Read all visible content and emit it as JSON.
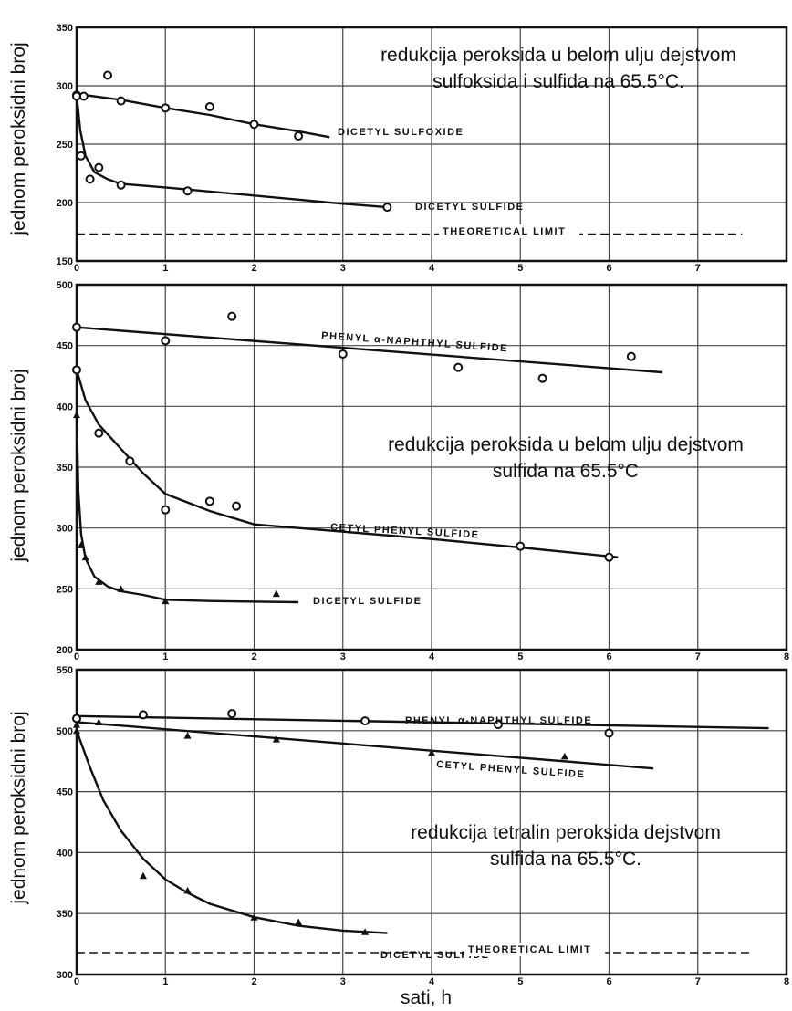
{
  "chart_data": [
    {
      "type": "scatter",
      "title": "redukcija peroksida u belom ulju dejstvom",
      "title_line2": "sulfoksida i sulfida na 65.5°C.",
      "ylabel": "jednom peroksidni broj",
      "xlim": [
        0,
        8
      ],
      "ylim": [
        150,
        350
      ],
      "x_ticks": [
        "0",
        "1",
        "2",
        "3",
        "4",
        "5",
        "6",
        "7"
      ],
      "y_ticks": [
        "150",
        "200",
        "250",
        "300",
        "350"
      ],
      "grid": true,
      "series": [
        {
          "name": "DICETYL SULFOXIDE",
          "marker": "circle",
          "points": [
            [
              0,
              292
            ],
            [
              0.08,
              291
            ],
            [
              0.35,
              309
            ],
            [
              0.5,
              287
            ],
            [
              1.0,
              281
            ],
            [
              1.5,
              282
            ],
            [
              2.0,
              267
            ],
            [
              2.5,
              257
            ]
          ],
          "fit": [
            [
              0,
              293
            ],
            [
              0.5,
              288
            ],
            [
              1.0,
              281
            ],
            [
              1.5,
              275
            ],
            [
              2.0,
              267
            ],
            [
              2.5,
              261
            ],
            [
              2.85,
              256
            ]
          ]
        },
        {
          "name": "DICETYL SULFIDE",
          "marker": "circle",
          "points": [
            [
              0,
              291
            ],
            [
              0.05,
              240
            ],
            [
              0.15,
              220
            ],
            [
              0.25,
              230
            ],
            [
              0.5,
              215
            ],
            [
              1.25,
              210
            ],
            [
              3.5,
              196
            ]
          ],
          "fit": [
            [
              0,
              292
            ],
            [
              0.04,
              262
            ],
            [
              0.1,
              240
            ],
            [
              0.2,
              226
            ],
            [
              0.35,
              220
            ],
            [
              0.5,
              216
            ],
            [
              1.0,
              213
            ],
            [
              2.0,
              206
            ],
            [
              3.0,
              199
            ],
            [
              3.5,
              196
            ]
          ]
        },
        {
          "name": "THEORETICAL LIMIT",
          "style": "dashed",
          "fit": [
            [
              0,
              173
            ],
            [
              7.5,
              173
            ]
          ]
        }
      ]
    },
    {
      "type": "scatter",
      "title": "redukcija peroksida u belom ulju dejstvom",
      "title_line2": "sulfida na 65.5°C",
      "ylabel": "jednom peroksidni broj",
      "xlim": [
        0,
        8
      ],
      "ylim": [
        200,
        500
      ],
      "x_ticks": [
        "0",
        "1",
        "2",
        "3",
        "4",
        "5",
        "6",
        "7",
        "8"
      ],
      "y_ticks": [
        "200",
        "250",
        "300",
        "350",
        "400",
        "450",
        "500"
      ],
      "grid": true,
      "series": [
        {
          "name": "PHENYL α-NAPHTHYL SULFIDE",
          "marker": "circle",
          "points": [
            [
              0,
              465
            ],
            [
              1.0,
              454
            ],
            [
              1.75,
              474
            ],
            [
              3.0,
              443
            ],
            [
              4.3,
              432
            ],
            [
              5.25,
              423
            ],
            [
              6.25,
              441
            ]
          ],
          "fit": [
            [
              0,
              465
            ],
            [
              6.6,
              428
            ]
          ]
        },
        {
          "name": "CETYL PHENYL SULFIDE",
          "marker": "circle",
          "points": [
            [
              0,
              430
            ],
            [
              0.25,
              378
            ],
            [
              0.6,
              355
            ],
            [
              1.0,
              315
            ],
            [
              1.5,
              322
            ],
            [
              1.8,
              318
            ],
            [
              5.0,
              285
            ],
            [
              6.0,
              276
            ]
          ],
          "fit": [
            [
              0,
              430
            ],
            [
              0.1,
              405
            ],
            [
              0.25,
              385
            ],
            [
              0.5,
              365
            ],
            [
              0.75,
              345
            ],
            [
              1.0,
              328
            ],
            [
              1.5,
              314
            ],
            [
              2.0,
              303
            ],
            [
              3.0,
              297
            ],
            [
              4.0,
              291
            ],
            [
              5.0,
              284
            ],
            [
              6.1,
              276
            ]
          ]
        },
        {
          "name": "DICETYL SULFIDE",
          "marker": "triangle",
          "points": [
            [
              0,
              393
            ],
            [
              0.05,
              286
            ],
            [
              0.1,
              276
            ],
            [
              0.25,
              256
            ],
            [
              0.5,
              250
            ],
            [
              1.0,
              240
            ],
            [
              2.25,
              246
            ]
          ],
          "fit": [
            [
              0,
              395
            ],
            [
              0.02,
              330
            ],
            [
              0.05,
              295
            ],
            [
              0.1,
              275
            ],
            [
              0.2,
              260
            ],
            [
              0.35,
              252
            ],
            [
              0.5,
              248
            ],
            [
              0.75,
              245
            ],
            [
              1.0,
              241
            ],
            [
              1.5,
              240
            ],
            [
              2.5,
              239
            ]
          ]
        }
      ]
    },
    {
      "type": "scatter",
      "title": "redukcija tetralin peroksida dejstvom",
      "title_line2": "sulfida na 65.5°C.",
      "ylabel": "jednom peroksidni broj",
      "xlabel": "sati, h",
      "xlim": [
        0,
        8
      ],
      "ylim": [
        300,
        550
      ],
      "x_ticks": [
        "0",
        "1",
        "2",
        "3",
        "4",
        "5",
        "6",
        "7",
        "8"
      ],
      "y_ticks": [
        "300",
        "350",
        "400",
        "450",
        "500",
        "550"
      ],
      "grid": true,
      "series": [
        {
          "name": "PHENYL α-NAPHTHYL SULFIDE",
          "marker": "circle",
          "points": [
            [
              0,
              510
            ],
            [
              0.75,
              513
            ],
            [
              1.75,
              514
            ],
            [
              3.25,
              508
            ],
            [
              4.75,
              505
            ],
            [
              6.0,
              498
            ]
          ],
          "fit": [
            [
              0,
              512
            ],
            [
              7.8,
              502
            ]
          ]
        },
        {
          "name": "CETYL PHENYL SULFIDE",
          "marker": "triangle",
          "points": [
            [
              0,
              505
            ],
            [
              0.25,
              507
            ],
            [
              1.25,
              496
            ],
            [
              2.25,
              493
            ],
            [
              4.0,
              482
            ],
            [
              5.5,
              479
            ]
          ],
          "fit": [
            [
              0,
              507
            ],
            [
              6.5,
              469
            ]
          ]
        },
        {
          "name": "DICETYL SULFIDE",
          "marker": "triangle",
          "points": [
            [
              0,
              500
            ],
            [
              0.75,
              381
            ],
            [
              1.25,
              369
            ],
            [
              2.0,
              347
            ],
            [
              2.5,
              343
            ],
            [
              3.25,
              335
            ]
          ],
          "fit": [
            [
              0,
              500
            ],
            [
              0.15,
              470
            ],
            [
              0.3,
              443
            ],
            [
              0.5,
              418
            ],
            [
              0.75,
              395
            ],
            [
              1.0,
              378
            ],
            [
              1.25,
              367
            ],
            [
              1.5,
              358
            ],
            [
              2.0,
              347
            ],
            [
              2.5,
              340
            ],
            [
              3.0,
              336
            ],
            [
              3.5,
              334
            ]
          ]
        },
        {
          "name": "THEORETICAL LIMIT",
          "style": "dashed",
          "fit": [
            [
              0,
              318
            ],
            [
              7.6,
              318
            ]
          ]
        }
      ]
    }
  ]
}
